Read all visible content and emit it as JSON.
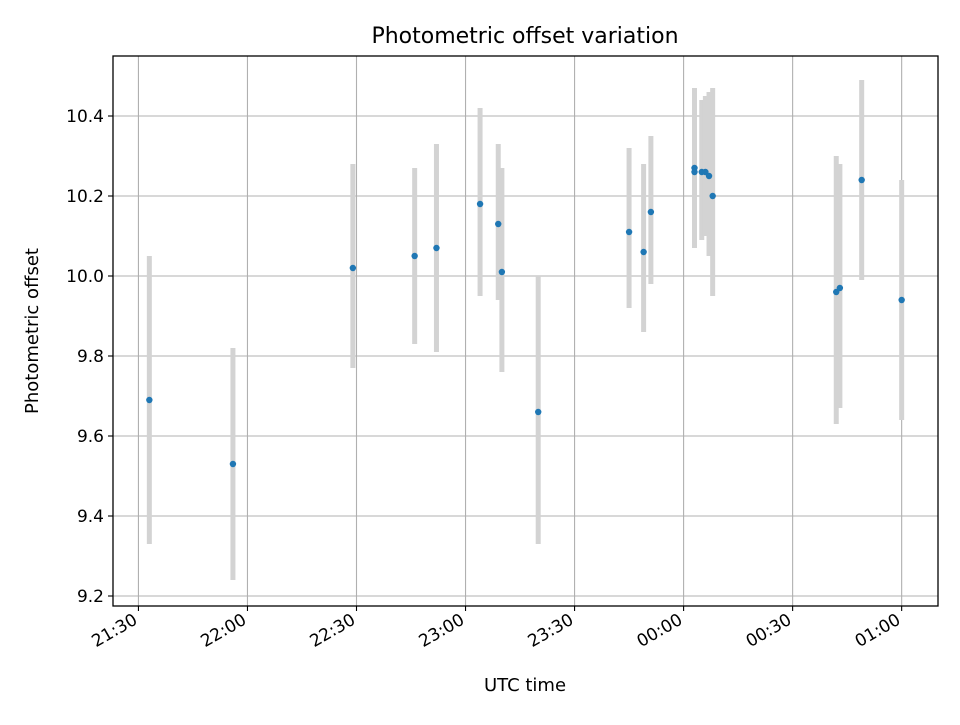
{
  "chart_data": {
    "type": "scatter",
    "title": "Photometric offset variation",
    "xlabel": "UTC time",
    "ylabel": "Photometric offset",
    "x_axis_kind": "time",
    "x_ticks": [
      "21:30",
      "22:00",
      "22:30",
      "23:00",
      "23:30",
      "00:00",
      "00:30",
      "01:00"
    ],
    "y_ticks": [
      "9.2",
      "9.4",
      "9.6",
      "9.8",
      "10.0",
      "10.2",
      "10.4"
    ],
    "ylim": [
      9.175,
      10.55
    ],
    "xlim": [
      "21:23",
      "01:10"
    ],
    "grid": true,
    "marker_color": "#1f77b4",
    "errorbar_color": "#d3d3d3",
    "series": [
      {
        "x": [
          "21:33",
          "21:56",
          "22:29",
          "22:46",
          "22:52",
          "23:04",
          "23:09",
          "23:10",
          "23:20",
          "23:45",
          "23:49",
          "23:51",
          "00:03",
          "00:03",
          "00:05",
          "00:06",
          "00:07",
          "00:08",
          "00:42",
          "00:43",
          "00:49",
          "01:00"
        ],
        "y": [
          9.69,
          9.53,
          10.02,
          10.05,
          10.07,
          10.18,
          10.13,
          10.01,
          9.66,
          10.11,
          10.06,
          10.16,
          10.27,
          10.26,
          10.26,
          10.26,
          10.25,
          10.2,
          9.96,
          9.97,
          10.24,
          9.94
        ],
        "err_low": [
          9.33,
          9.24,
          9.77,
          9.83,
          9.81,
          9.95,
          9.94,
          9.76,
          9.33,
          9.92,
          9.86,
          9.98,
          10.1,
          10.07,
          10.09,
          10.1,
          10.05,
          9.95,
          9.63,
          9.67,
          9.99,
          9.64
        ],
        "err_high": [
          10.05,
          9.82,
          10.28,
          10.27,
          10.33,
          10.42,
          10.33,
          10.27,
          10.0,
          10.32,
          10.28,
          10.35,
          10.46,
          10.47,
          10.44,
          10.45,
          10.46,
          10.47,
          10.3,
          10.28,
          10.49,
          10.24
        ]
      }
    ]
  }
}
